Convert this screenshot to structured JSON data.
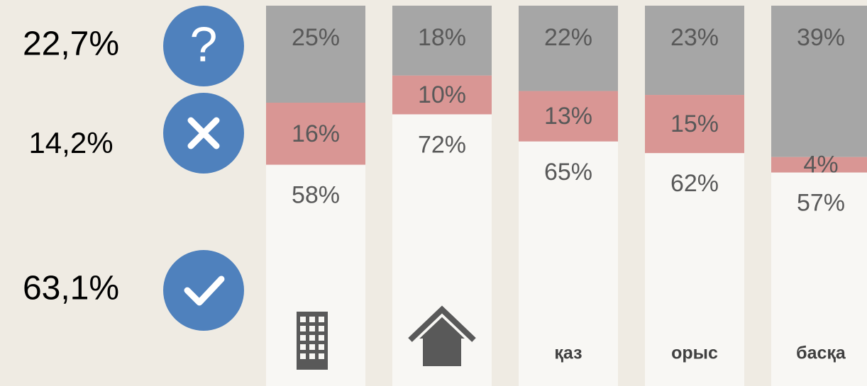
{
  "chart_data": {
    "type": "stacked_bar",
    "categories": [
      null,
      null,
      "қаз",
      "орыс",
      "басқа"
    ],
    "series": [
      {
        "color": "#a6a6a6",
        "values": [
          25,
          18,
          22,
          23,
          39
        ],
        "value_labels": [
          "25%",
          "18%",
          "22%",
          "23%",
          "39%"
        ]
      },
      {
        "color": "#d99694",
        "values": [
          16,
          10,
          13,
          15,
          4
        ],
        "value_labels": [
          "16%",
          "10%",
          "13%",
          "15%",
          "4%"
        ]
      },
      {
        "color": "#f8f7f4",
        "values": [
          58,
          72,
          65,
          62,
          57
        ],
        "value_labels": [
          "58%",
          "72%",
          "65%",
          "62%",
          "57%"
        ]
      }
    ],
    "summary": [
      {
        "value": 22.7,
        "label": "22,7%"
      },
      {
        "value": 14.2,
        "label": "14,2%"
      },
      {
        "value": 63.1,
        "label": "63,1%"
      }
    ]
  }
}
